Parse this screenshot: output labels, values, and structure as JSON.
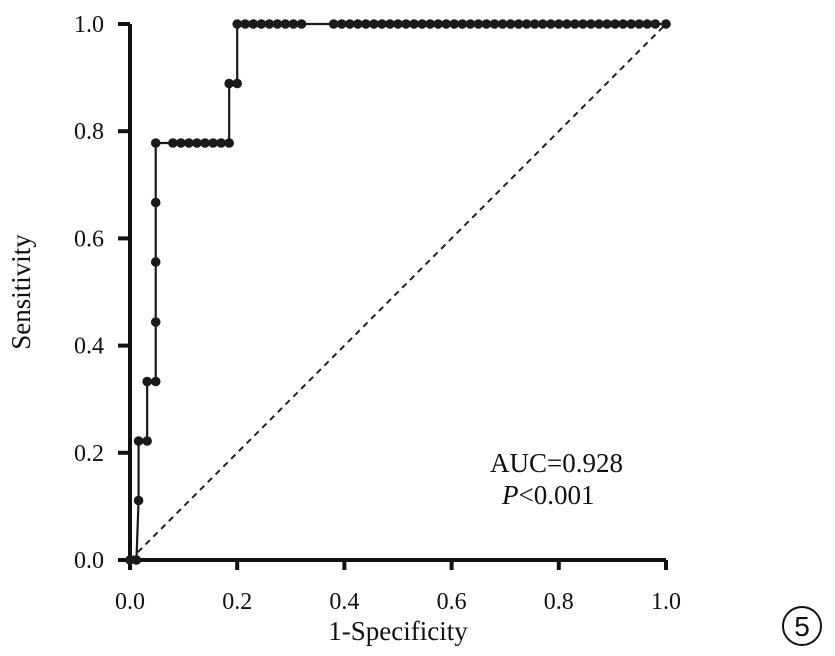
{
  "chart_data": {
    "type": "line",
    "title": "",
    "xlabel": "1-Specificity",
    "ylabel": "Sensitivity",
    "xlim": [
      0,
      1
    ],
    "ylim": [
      0,
      1
    ],
    "x_ticks": [
      "0.0",
      "0.2",
      "0.4",
      "0.6",
      "0.8",
      "1.0"
    ],
    "y_ticks": [
      "0.0",
      "0.2",
      "0.4",
      "0.6",
      "0.8",
      "1.0"
    ],
    "grid": false,
    "reference_line": {
      "x": [
        0,
        1
      ],
      "y": [
        0,
        1
      ],
      "style": "dashed"
    },
    "series": [
      {
        "step": true,
        "x": [
          0.0,
          0.012,
          0.016,
          0.016,
          0.032,
          0.032,
          0.048,
          0.048,
          0.048,
          0.048,
          0.048,
          0.08,
          0.095,
          0.11,
          0.125,
          0.14,
          0.155,
          0.17,
          0.185,
          0.185,
          0.2,
          0.2,
          0.215,
          0.23,
          0.245,
          0.26,
          0.275,
          0.29,
          0.305,
          0.32,
          0.38,
          0.395,
          0.41,
          0.425,
          0.44,
          0.455,
          0.47,
          0.485,
          0.5,
          0.515,
          0.53,
          0.545,
          0.56,
          0.575,
          0.59,
          0.605,
          0.62,
          0.635,
          0.65,
          0.665,
          0.68,
          0.695,
          0.71,
          0.725,
          0.74,
          0.755,
          0.77,
          0.785,
          0.8,
          0.815,
          0.83,
          0.845,
          0.86,
          0.875,
          0.89,
          0.905,
          0.92,
          0.935,
          0.95,
          0.965,
          0.98,
          1.0
        ],
        "y": [
          0.0,
          0.0,
          0.111,
          0.222,
          0.222,
          0.333,
          0.333,
          0.444,
          0.556,
          0.667,
          0.778,
          0.778,
          0.778,
          0.778,
          0.778,
          0.778,
          0.778,
          0.778,
          0.778,
          0.889,
          0.889,
          1.0,
          1.0,
          1.0,
          1.0,
          1.0,
          1.0,
          1.0,
          1.0,
          1.0,
          1.0,
          1.0,
          1.0,
          1.0,
          1.0,
          1.0,
          1.0,
          1.0,
          1.0,
          1.0,
          1.0,
          1.0,
          1.0,
          1.0,
          1.0,
          1.0,
          1.0,
          1.0,
          1.0,
          1.0,
          1.0,
          1.0,
          1.0,
          1.0,
          1.0,
          1.0,
          1.0,
          1.0,
          1.0,
          1.0,
          1.0,
          1.0,
          1.0,
          1.0,
          1.0,
          1.0,
          1.0,
          1.0,
          1.0,
          1.0,
          1.0,
          1.0
        ]
      }
    ],
    "annotations": {
      "auc": "AUC=0.928",
      "p_symbol": "P",
      "p_value": "<0.001"
    }
  },
  "panel_number": "5",
  "colors": {
    "line": "#1a1a1a",
    "axis": "#111111"
  }
}
